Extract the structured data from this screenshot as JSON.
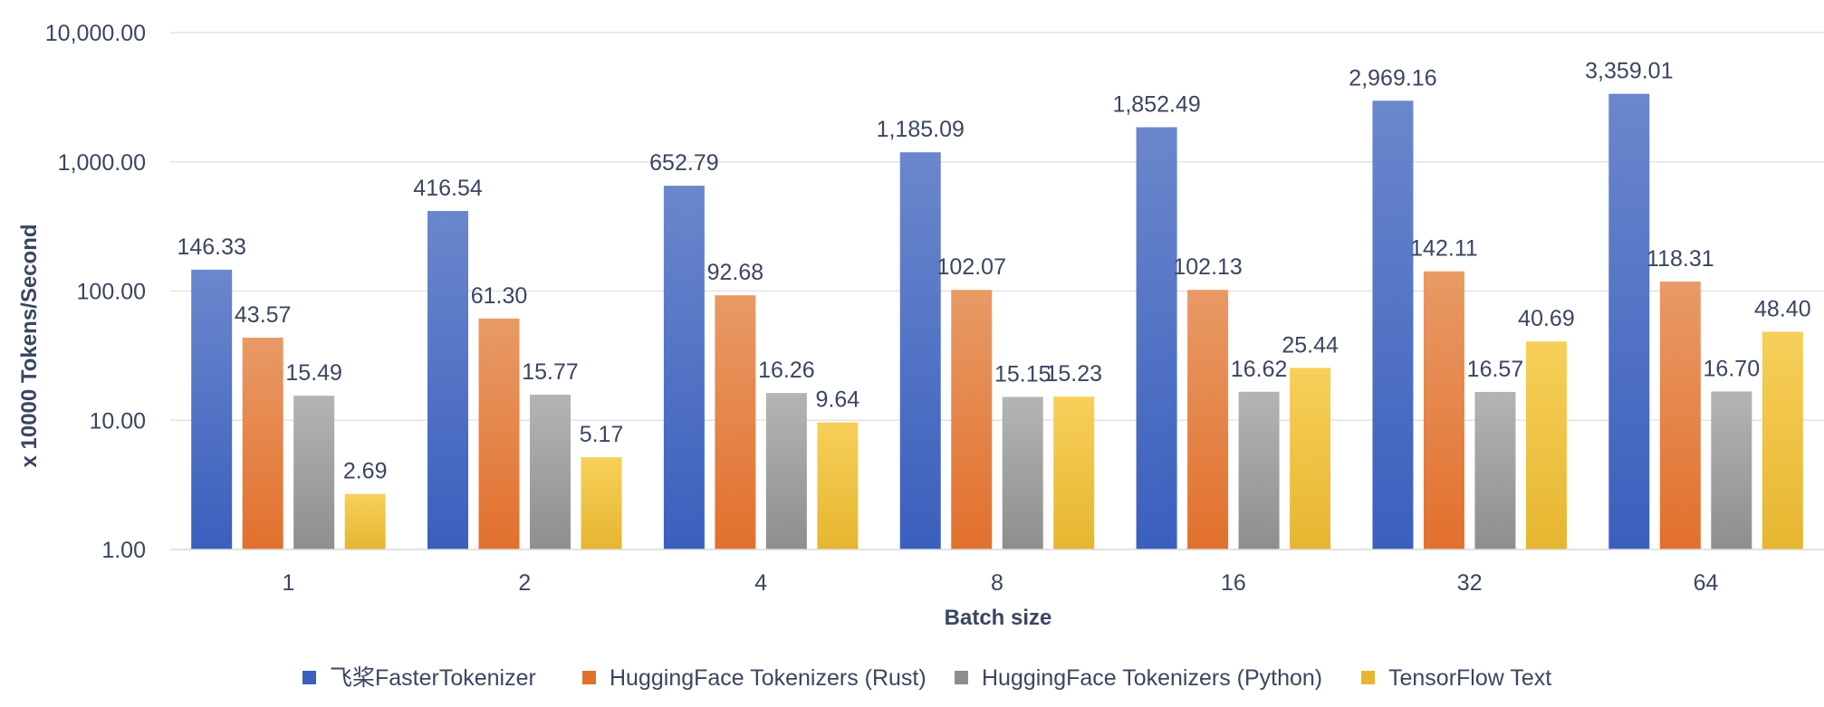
{
  "chart_data": {
    "type": "bar",
    "scale": "log",
    "title": "",
    "xlabel": "Batch size",
    "ylabel": "x 10000 Tokens/Second",
    "ylim": [
      1,
      10000
    ],
    "y_ticks": [
      {
        "value": 1,
        "label": "1.00"
      },
      {
        "value": 10,
        "label": "10.00"
      },
      {
        "value": 100,
        "label": "100.00"
      },
      {
        "value": 1000,
        "label": "1,000.00"
      },
      {
        "value": 10000,
        "label": "10,000.00"
      }
    ],
    "categories": [
      "1",
      "2",
      "4",
      "8",
      "16",
      "32",
      "64"
    ],
    "series": [
      {
        "name": "飞桨FasterTokenizer",
        "color_top": "#6b87cc",
        "color_bottom": "#3a5fbd",
        "values": [
          146.33,
          416.54,
          652.79,
          1185.09,
          1852.49,
          2969.16,
          3359.01
        ],
        "labels": [
          "146.33",
          "416.54",
          "652.79",
          "1,185.09",
          "1,852.49",
          "2,969.16",
          "3,359.01"
        ]
      },
      {
        "name": "HuggingFace Tokenizers (Rust)",
        "color_top": "#e89a66",
        "color_bottom": "#e2702d",
        "values": [
          43.57,
          61.3,
          92.68,
          102.07,
          102.13,
          142.11,
          118.31
        ],
        "labels": [
          "43.57",
          "61.30",
          "92.68",
          "102.07",
          "102.13",
          "142.11",
          "118.31"
        ]
      },
      {
        "name": "HuggingFace Tokenizers (Python)",
        "color_top": "#b4b4b4",
        "color_bottom": "#8e8e8e",
        "values": [
          15.49,
          15.77,
          16.26,
          15.15,
          16.62,
          16.57,
          16.7
        ],
        "labels": [
          "15.49",
          "15.77",
          "16.26",
          "15.15",
          "16.62",
          "16.57",
          "16.70"
        ]
      },
      {
        "name": "TensorFlow Text",
        "color_top": "#f7cf59",
        "color_bottom": "#e6b630",
        "values": [
          2.69,
          5.17,
          9.64,
          15.23,
          25.44,
          40.69,
          48.4
        ],
        "labels": [
          "2.69",
          "5.17",
          "9.64",
          "15.23",
          "25.44",
          "40.69",
          "48.40"
        ]
      }
    ],
    "grid": true,
    "legend_position": "bottom"
  }
}
